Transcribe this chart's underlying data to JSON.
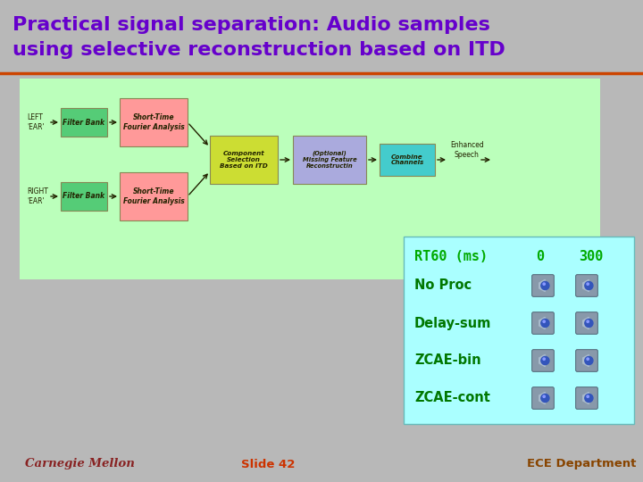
{
  "title_line1": "Practical signal separation: Audio samples",
  "title_line2": "using selective reconstruction based on ITD",
  "title_color": "#6600cc",
  "title_fontsize": 16,
  "bg_color": "#b8b8b8",
  "divider_color": "#cc4400",
  "diagram_bg": "#bbffbb",
  "rt_panel_bg": "#aaffff",
  "rt_header_color": "#00aa00",
  "rt_label_color": "#007700",
  "rt_header": "RT60 (ms)",
  "rt_col1": "0",
  "rt_col2": "300",
  "rows": [
    "No Proc",
    "Delay-sum",
    "ZCAE-bin",
    "ZCAE-cont"
  ],
  "footer_left": "Carnegie Mellon",
  "footer_center": "Slide 42",
  "footer_right": "ECE Department",
  "footer_color_left": "#882222",
  "footer_color_center": "#cc3300",
  "footer_color_right": "#884400",
  "box_pink": "#ff9999",
  "box_green": "#55cc77",
  "box_yellow": "#ccdd33",
  "box_purple": "#aaaadd",
  "box_cyan": "#44cccc",
  "arrow_color": "#222200"
}
